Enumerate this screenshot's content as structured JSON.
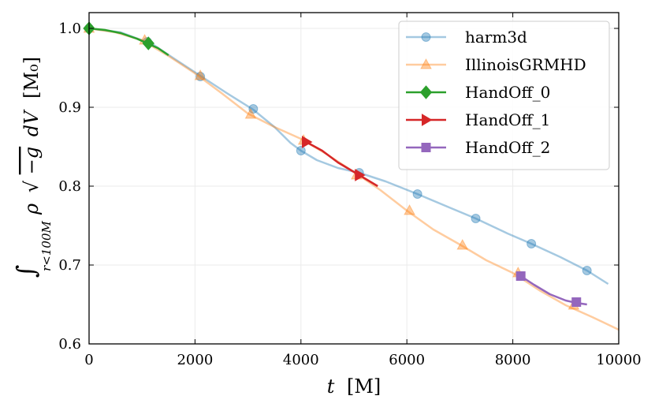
{
  "chart_data": {
    "type": "line",
    "title": "",
    "xlabel_var": "t",
    "xlabel_unit": "[M]",
    "ylabel_integral": "∫",
    "ylabel_sub": "r<100M",
    "ylabel_rho": "ρ",
    "ylabel_sqrt": "√",
    "ylabel_radicand": "−g",
    "ylabel_dV": "dV",
    "ylabel_unit": "[M₀]",
    "xlim": [
      0,
      10000
    ],
    "ylim": [
      0.6,
      1.02
    ],
    "xticks": [
      0,
      2000,
      4000,
      6000,
      8000,
      10000
    ],
    "xtick_labels": [
      "0",
      "2000",
      "4000",
      "6000",
      "8000",
      "10000"
    ],
    "yticks": [
      0.6,
      0.7,
      0.8,
      0.9,
      1.0
    ],
    "ytick_labels": [
      "0.6",
      "0.7",
      "0.8",
      "0.9",
      "1.0"
    ],
    "grid": true,
    "legend_position": "upper right",
    "series": [
      {
        "name": "harm3d",
        "color": "#1f77b4",
        "alpha": 0.4,
        "marker": "circle",
        "x": [
          0,
          600,
          1200,
          1600,
          2100,
          2600,
          3100,
          3500,
          3800,
          4000,
          4300,
          4700,
          5100,
          5600,
          6200,
          6800,
          7300,
          7900,
          8350,
          8900,
          9400,
          9800
        ],
        "y": [
          1.0,
          0.995,
          0.98,
          0.962,
          0.94,
          0.918,
          0.897,
          0.875,
          0.855,
          0.845,
          0.833,
          0.823,
          0.817,
          0.806,
          0.79,
          0.773,
          0.759,
          0.74,
          0.727,
          0.71,
          0.693,
          0.676
        ],
        "marker_x": [
          0,
          1100,
          2100,
          3100,
          4000,
          5100,
          6200,
          7300,
          8350,
          9400
        ],
        "marker_y": [
          1.0,
          0.983,
          0.939,
          0.898,
          0.845,
          0.817,
          0.79,
          0.759,
          0.727,
          0.693
        ]
      },
      {
        "name": "IllinoisGRMHD",
        "color": "#ff7f0e",
        "alpha": 0.4,
        "marker": "triangle",
        "x": [
          0,
          500,
          1000,
          1500,
          2000,
          2500,
          3000,
          3500,
          4000,
          4500,
          5000,
          5500,
          6000,
          6500,
          7000,
          7500,
          8000,
          8500,
          9000,
          9500,
          10000
        ],
        "y": [
          1.0,
          0.995,
          0.985,
          0.965,
          0.943,
          0.918,
          0.892,
          0.875,
          0.86,
          0.84,
          0.818,
          0.795,
          0.769,
          0.745,
          0.726,
          0.706,
          0.69,
          0.668,
          0.649,
          0.634,
          0.618
        ],
        "marker_x": [
          0,
          1050,
          2100,
          3050,
          4050,
          5050,
          6050,
          7050,
          8100,
          9150
        ],
        "marker_y": [
          1.0,
          0.985,
          0.94,
          0.891,
          0.858,
          0.814,
          0.769,
          0.725,
          0.69,
          0.649
        ]
      },
      {
        "name": "HandOff_0",
        "color": "#2ca02c",
        "alpha": 1.0,
        "marker": "diamond",
        "x": [
          0,
          300,
          600,
          900,
          1100,
          1300,
          1500
        ],
        "y": [
          1.0,
          0.998,
          0.994,
          0.987,
          0.981,
          0.975,
          0.966
        ],
        "marker_x": [
          0,
          1120
        ],
        "marker_y": [
          1.0,
          0.981
        ]
      },
      {
        "name": "HandOff_1",
        "color": "#d62728",
        "alpha": 1.0,
        "marker": "triangle-right",
        "x": [
          4100,
          4400,
          4700,
          5000,
          5100,
          5300,
          5450
        ],
        "y": [
          0.856,
          0.845,
          0.83,
          0.818,
          0.814,
          0.806,
          0.8
        ],
        "marker_x": [
          4100,
          5100
        ],
        "marker_y": [
          0.856,
          0.814
        ]
      },
      {
        "name": "HandOff_2",
        "color": "#9467bd",
        "alpha": 1.0,
        "marker": "square",
        "x": [
          8150,
          8400,
          8700,
          9000,
          9200,
          9400
        ],
        "y": [
          0.686,
          0.675,
          0.663,
          0.655,
          0.652,
          0.65
        ],
        "marker_x": [
          8150,
          9200
        ],
        "marker_y": [
          0.686,
          0.653
        ]
      }
    ]
  }
}
